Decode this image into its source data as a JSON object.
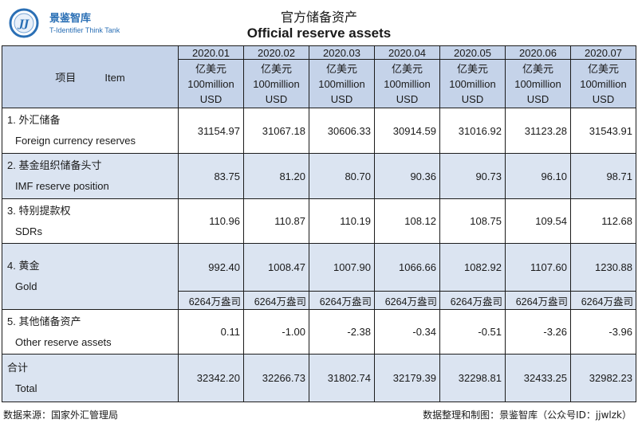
{
  "brand": {
    "name_cn": "景鉴智库",
    "name_en": "T-Identifier Think Tank",
    "logo_mark": "JJ",
    "color": "#2a6fb5"
  },
  "title": {
    "cn": "官方储备资产",
    "en": "Official reserve assets"
  },
  "table": {
    "item_header": {
      "cn": "项目",
      "en": "Item"
    },
    "unit": {
      "cn": "亿美元",
      "en": "100million",
      "currency": "USD"
    },
    "months": [
      "2020.01",
      "2020.02",
      "2020.03",
      "2020.04",
      "2020.05",
      "2020.06",
      "2020.07"
    ],
    "rows": [
      {
        "cn": "1. 外汇储备",
        "en": "Foreign currency reserves",
        "values": [
          "31154.97",
          "31067.18",
          "30606.33",
          "30914.59",
          "31016.92",
          "31123.28",
          "31543.91"
        ]
      },
      {
        "cn": "2. 基金组织储备头寸",
        "en": "IMF reserve position",
        "values": [
          "83.75",
          "81.20",
          "80.70",
          "90.36",
          "90.73",
          "96.10",
          "98.71"
        ]
      },
      {
        "cn": "3. 特别提款权",
        "en": "SDRs",
        "values": [
          "110.96",
          "110.87",
          "110.19",
          "108.12",
          "108.75",
          "109.54",
          "112.68"
        ]
      },
      {
        "cn": "4. 黄金",
        "en": "Gold",
        "values": [
          "992.40",
          "1008.47",
          "1007.90",
          "1066.66",
          "1082.92",
          "1107.60",
          "1230.88"
        ]
      },
      {
        "cn": "5. 其他储备资产",
        "en": "Other reserve assets",
        "values": [
          "0.11",
          "-1.00",
          "-2.38",
          "-0.34",
          "-0.51",
          "-3.26",
          "-3.96"
        ]
      },
      {
        "cn": "合计",
        "en": "Total",
        "values": [
          "32342.20",
          "32266.73",
          "31802.74",
          "32179.39",
          "32298.81",
          "32433.25",
          "32982.23"
        ]
      }
    ],
    "gold_ounces": [
      "6264万盎司",
      "6264万盎司",
      "6264万盎司",
      "6264万盎司",
      "6264万盎司",
      "6264万盎司",
      "6264万盎司"
    ],
    "colors": {
      "header_bg": "#c5d3e9",
      "shaded_row_bg": "#dbe4f1",
      "border": "#1c1c1c"
    }
  },
  "footer": {
    "source": "数据来源：国家外汇管理局",
    "credit": "数据整理和制图：景鉴智库（公众号ID：jjwlzk）"
  }
}
